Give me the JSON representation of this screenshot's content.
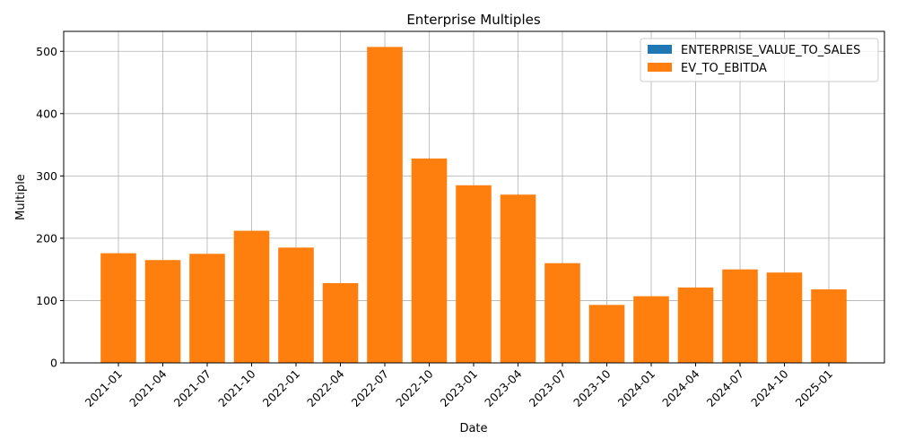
{
  "chart_data": {
    "type": "bar",
    "title": "Enterprise Multiples",
    "xlabel": "Date",
    "ylabel": "Multiple",
    "ylim": [
      0,
      532
    ],
    "yticks": [
      0,
      100,
      200,
      300,
      400,
      500
    ],
    "grid": true,
    "legend_position": "top-right",
    "categories": [
      "2021-01",
      "2021-04",
      "2021-07",
      "2021-10",
      "2022-01",
      "2022-04",
      "2022-07",
      "2022-10",
      "2023-01",
      "2023-04",
      "2023-07",
      "2023-10",
      "2024-01",
      "2024-04",
      "2024-07",
      "2024-10",
      "2025-01"
    ],
    "series": [
      {
        "name": "ENTERPRISE_VALUE_TO_SALES",
        "color": "#1f77b4",
        "values": [
          0,
          0,
          0,
          0,
          0,
          0,
          0,
          0,
          0,
          0,
          0,
          0,
          0,
          0,
          0,
          0,
          0
        ]
      },
      {
        "name": "EV_TO_EBITDA",
        "color": "#ff7f0e",
        "values": [
          176,
          165,
          175,
          212,
          185,
          128,
          507,
          328,
          285,
          270,
          160,
          93,
          107,
          121,
          150,
          145,
          118
        ]
      }
    ]
  }
}
